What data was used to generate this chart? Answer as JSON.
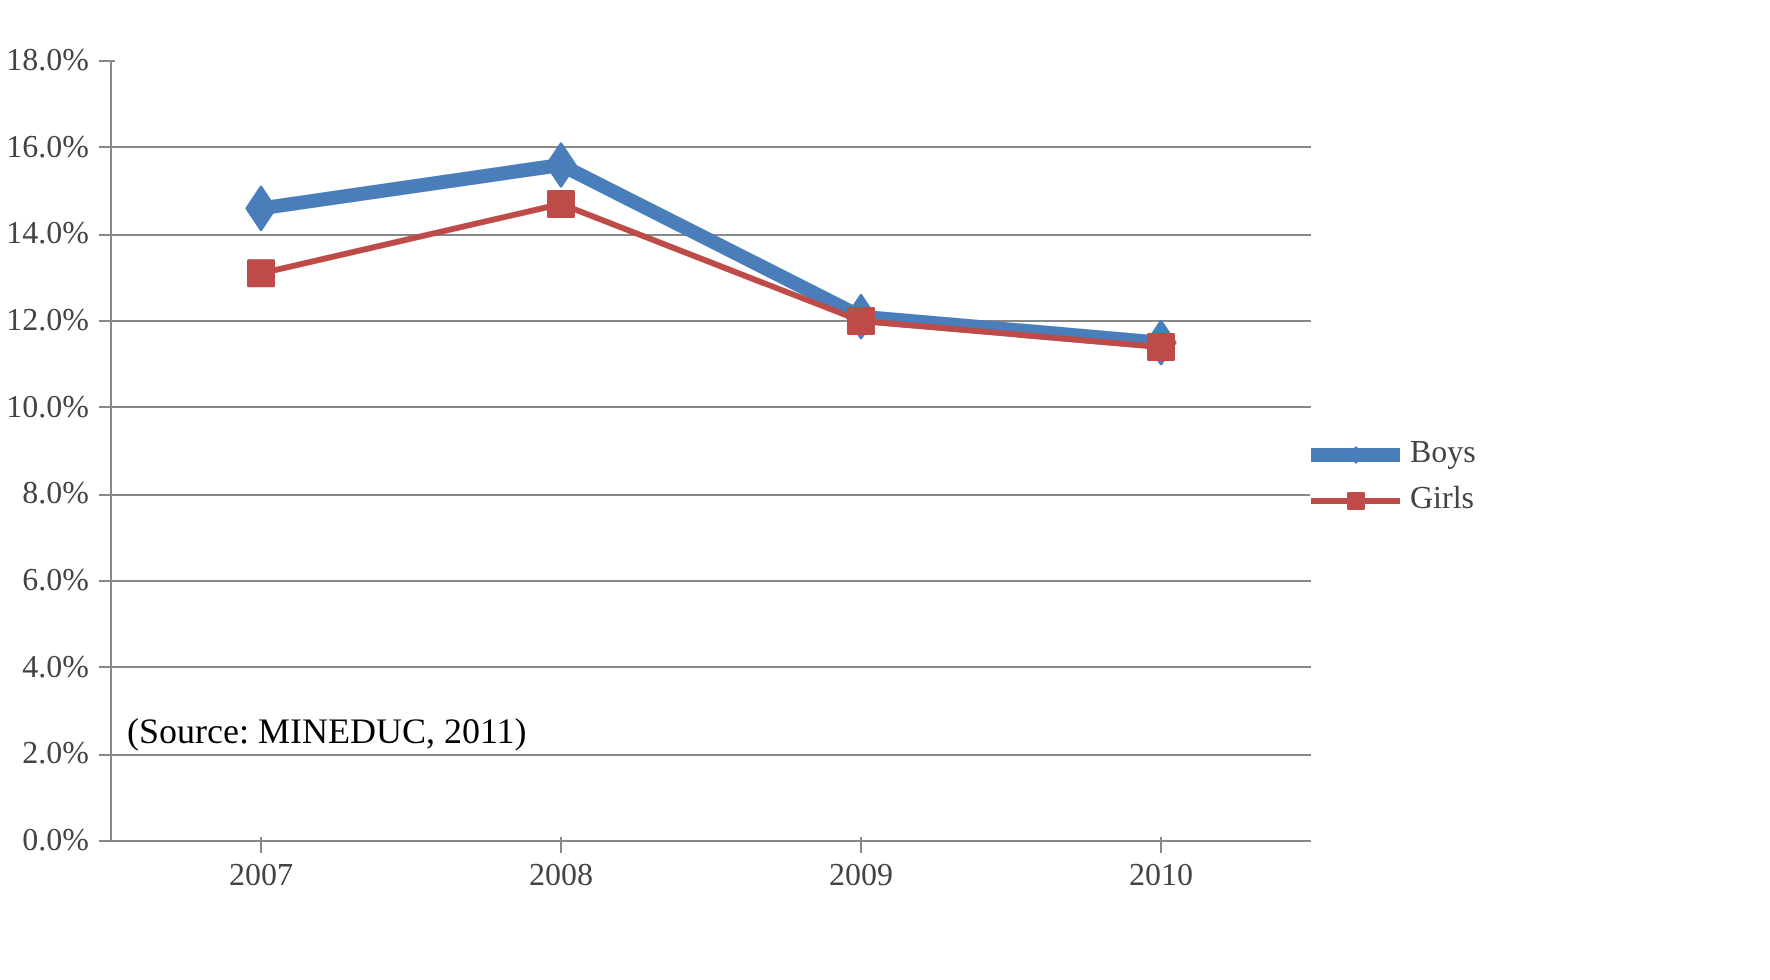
{
  "chart_data": {
    "type": "line",
    "categories": [
      "2007",
      "2008",
      "2009",
      "2010"
    ],
    "series": [
      {
        "name": "Boys",
        "color": "#4a7ebb",
        "marker": "diamond",
        "values": [
          14.6,
          15.6,
          12.1,
          11.5
        ]
      },
      {
        "name": "Girls",
        "color": "#be4b48",
        "marker": "square",
        "values": [
          13.1,
          14.7,
          12.0,
          11.4
        ]
      }
    ],
    "ylim": [
      0,
      18
    ],
    "yticks": [
      {
        "value": 0,
        "label": "0.0%"
      },
      {
        "value": 2,
        "label": "2.0%"
      },
      {
        "value": 4,
        "label": "4.0%"
      },
      {
        "value": 6,
        "label": "6.0%"
      },
      {
        "value": 8,
        "label": "8.0%"
      },
      {
        "value": 10,
        "label": "10.0%"
      },
      {
        "value": 12,
        "label": "12.0%"
      },
      {
        "value": 14,
        "label": "14.0%"
      },
      {
        "value": 16,
        "label": "16.0%"
      },
      {
        "value": 18,
        "label": "18.0%"
      }
    ],
    "grid": "y",
    "legend": "right",
    "line_style": "solid",
    "annotations": [
      "(Source: MINEDUC, 2011)"
    ]
  }
}
